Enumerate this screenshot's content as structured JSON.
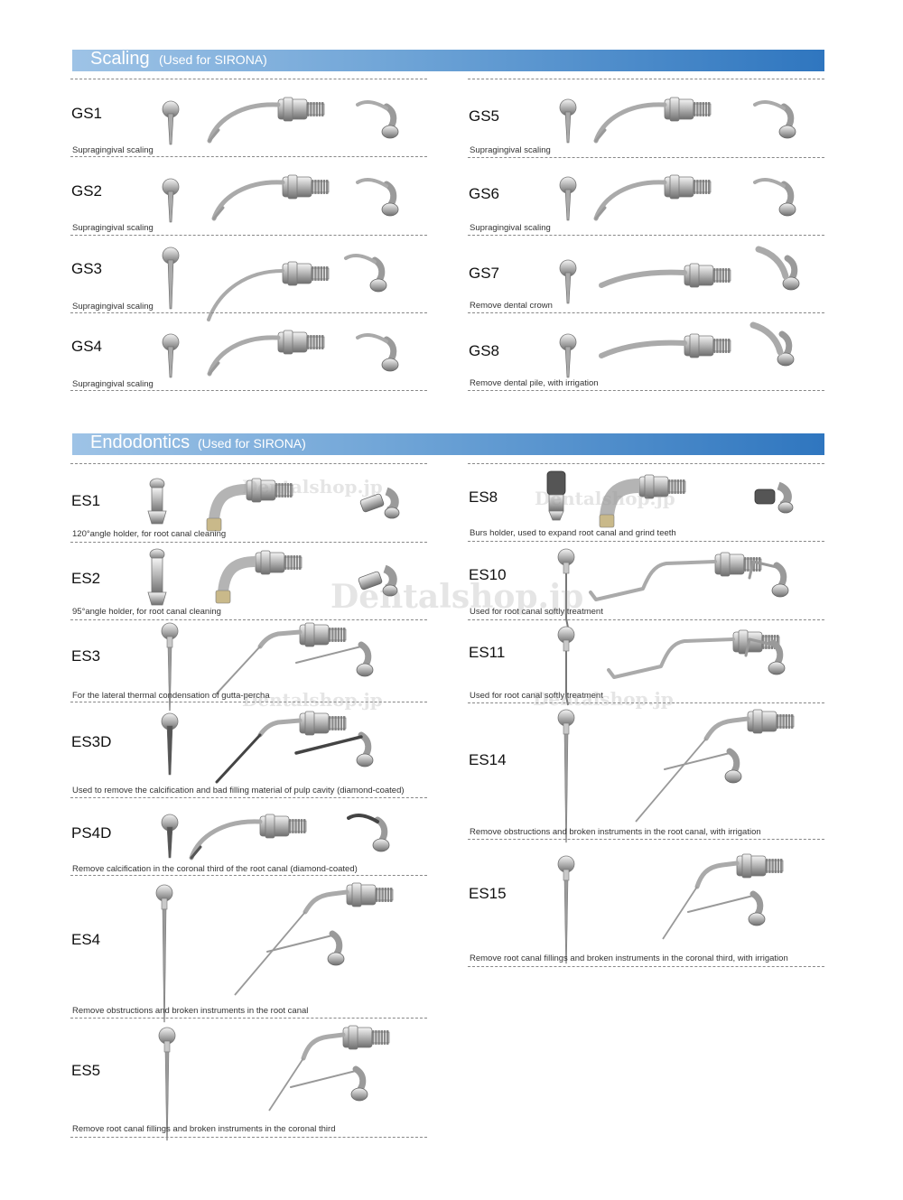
{
  "scaling": {
    "title": "Scaling",
    "subtitle": "(Used for SIRONA)",
    "items": [
      {
        "code": "GS1",
        "desc": "Supragingival scaling"
      },
      {
        "code": "GS2",
        "desc": "Supragingival scaling"
      },
      {
        "code": "GS3",
        "desc": "Supragingival scaling"
      },
      {
        "code": "GS4",
        "desc": "Supragingival scaling"
      },
      {
        "code": "GS5",
        "desc": "Supragingival scaling"
      },
      {
        "code": "GS6",
        "desc": "Supragingival scaling"
      },
      {
        "code": "GS7",
        "desc": "Remove dental crown"
      },
      {
        "code": "GS8",
        "desc": "Remove dental pile, with irrigation"
      }
    ]
  },
  "endodontics": {
    "title": "Endodontics",
    "subtitle": "(Used for SIRONA)",
    "items": [
      {
        "code": "ES1",
        "desc": "120°angle holder, for root canal cleaning"
      },
      {
        "code": "ES2",
        "desc": "95°angle holder, for root canal cleaning"
      },
      {
        "code": "ES3",
        "desc": "For the lateral thermal condensation of gutta-percha"
      },
      {
        "code": "ES3D",
        "desc": "Used to remove the calcification and bad filling material of pulp cavity (diamond-coated)"
      },
      {
        "code": "PS4D",
        "desc": "Remove calcification in the coronal third of the root canal (diamond-coated)"
      },
      {
        "code": "ES4",
        "desc": "Remove obstructions and broken instruments in the root canal"
      },
      {
        "code": "ES5",
        "desc": "Remove root canal fillings and broken instruments in the coronal third"
      },
      {
        "code": "ES8",
        "desc": "Burs holder, used to expand root canal and grind teeth"
      },
      {
        "code": "ES10",
        "desc": "Used for root canal softly treatment"
      },
      {
        "code": "ES11",
        "desc": "Used for root canal softly treatment"
      },
      {
        "code": "ES14",
        "desc": "Remove obstructions and broken instruments in the root canal, with irrigation"
      },
      {
        "code": "ES15",
        "desc": "Remove root canal fillings and broken instruments in the coronal third, with irrigation"
      }
    ]
  },
  "watermarks": [
    "Dentalshop.jp",
    "Dentalshop.jp",
    "Dentalshop.jp",
    "Dentalshop.jp",
    "Dentalshop.jp"
  ]
}
